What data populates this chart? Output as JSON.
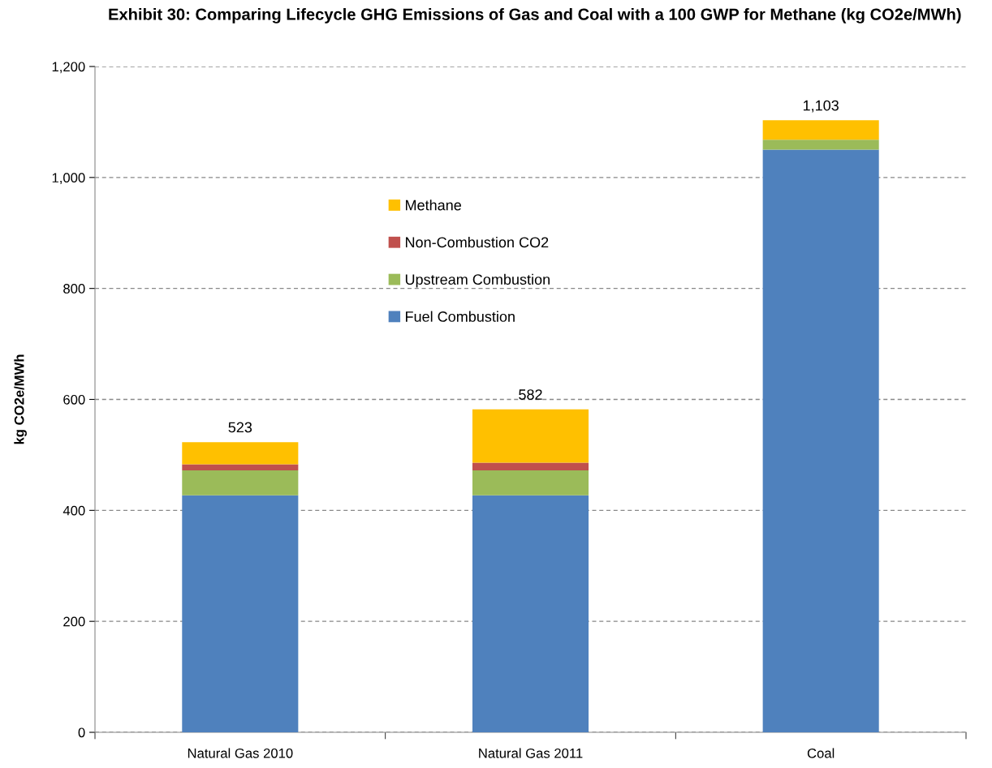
{
  "chart_data": {
    "type": "bar",
    "stacked": true,
    "title": "Exhibit 30: Comparing Lifecycle GHG Emissions of Gas and Coal with a 100 GWP for Methane (kg CO2e/MWh)",
    "ylabel": "kg CO2e/MWh",
    "categories": [
      "Natural Gas 2010",
      "Natural Gas 2011",
      "Coal"
    ],
    "series": [
      {
        "name": "Fuel Combustion",
        "color": "#4f81bd",
        "values": [
          427,
          427,
          1050
        ]
      },
      {
        "name": "Upstream Combustion",
        "color": "#9bbb59",
        "values": [
          45,
          45,
          18
        ]
      },
      {
        "name": "Non-Combustion CO2",
        "color": "#c0504d",
        "values": [
          11,
          14,
          0
        ]
      },
      {
        "name": "Methane",
        "color": "#ffc000",
        "values": [
          40,
          96,
          35
        ]
      }
    ],
    "totals": [
      "523",
      "582",
      "1,103"
    ],
    "ylim": [
      0,
      1200
    ],
    "yticks": [
      {
        "value": 0,
        "label": "0"
      },
      {
        "value": 200,
        "label": "200"
      },
      {
        "value": 400,
        "label": "400"
      },
      {
        "value": 600,
        "label": "600"
      },
      {
        "value": 800,
        "label": "800"
      },
      {
        "value": 1000,
        "label": "1,000"
      },
      {
        "value": 1200,
        "label": "1,200"
      }
    ],
    "grid": "y",
    "legend": "upper center"
  }
}
